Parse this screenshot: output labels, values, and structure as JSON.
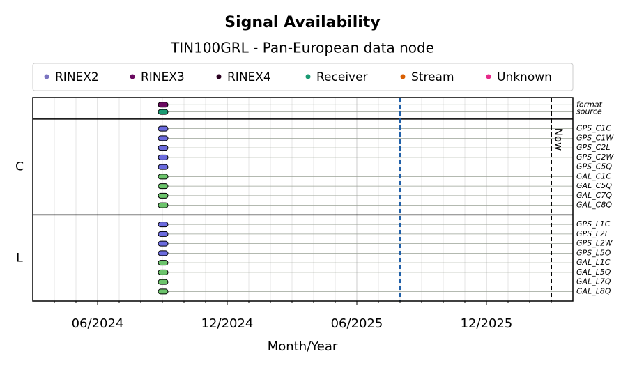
{
  "chart_data": {
    "type": "timeline",
    "title": "Signal Availability",
    "subtitle": "TIN100GRL - Pan-European data node",
    "xlabel": "Month/Year",
    "legend": [
      {
        "name": "RINEX2",
        "color": "#7b74c0"
      },
      {
        "name": "RINEX3",
        "color": "#6a0a60"
      },
      {
        "name": "RINEX4",
        "color": "#2a0020"
      },
      {
        "name": "Receiver",
        "color": "#1a9a72"
      },
      {
        "name": "Stream",
        "color": "#d95f02"
      },
      {
        "name": "Unknown",
        "color": "#e7298a"
      }
    ],
    "xlim": [
      "2024-03",
      "2026-04"
    ],
    "xticks": [
      {
        "value": "2024-06",
        "label": "06/2024"
      },
      {
        "value": "2024-12",
        "label": "12/2024"
      },
      {
        "value": "2025-06",
        "label": "06/2025"
      },
      {
        "value": "2025-12",
        "label": "12/2025"
      }
    ],
    "grid": true,
    "groups": [
      {
        "rows": [
          {
            "label": "format",
            "start": "2024-09",
            "color": "#6a0a60"
          },
          {
            "label": "source",
            "start": "2024-09",
            "color": "#1a9a72"
          }
        ]
      },
      {
        "name": "C",
        "rows": [
          {
            "label": "GPS_C1C",
            "start": "2024-09",
            "color": "#6b6bdd"
          },
          {
            "label": "GPS_C1W",
            "start": "2024-09",
            "color": "#6b6bdd"
          },
          {
            "label": "GPS_C2L",
            "start": "2024-09",
            "color": "#6b6bdd"
          },
          {
            "label": "GPS_C2W",
            "start": "2024-09",
            "color": "#6b6bdd"
          },
          {
            "label": "GPS_C5Q",
            "start": "2024-09",
            "color": "#6b6bdd"
          },
          {
            "label": "GAL_C1C",
            "start": "2024-09",
            "color": "#6cc46c"
          },
          {
            "label": "GAL_C5Q",
            "start": "2024-09",
            "color": "#6cc46c"
          },
          {
            "label": "GAL_C7Q",
            "start": "2024-09",
            "color": "#6cc46c"
          },
          {
            "label": "GAL_C8Q",
            "start": "2024-09",
            "color": "#6cc46c"
          }
        ]
      },
      {
        "name": "L",
        "rows": [
          {
            "label": "GPS_L1C",
            "start": "2024-09",
            "color": "#6b6bdd"
          },
          {
            "label": "GPS_L2L",
            "start": "2024-09",
            "color": "#6b6bdd"
          },
          {
            "label": "GPS_L2W",
            "start": "2024-09",
            "color": "#6b6bdd"
          },
          {
            "label": "GPS_L5Q",
            "start": "2024-09",
            "color": "#6b6bdd"
          },
          {
            "label": "GAL_L1C",
            "start": "2024-09",
            "color": "#6cc46c"
          },
          {
            "label": "GAL_L5Q",
            "start": "2024-09",
            "color": "#6cc46c"
          },
          {
            "label": "GAL_L7Q",
            "start": "2024-09",
            "color": "#6cc46c"
          },
          {
            "label": "GAL_L8Q",
            "start": "2024-09",
            "color": "#6cc46c"
          }
        ]
      }
    ],
    "markers": [
      {
        "x": "2025-08",
        "color": "#1f5fa8"
      },
      {
        "x": "2026-03",
        "color": "#000000",
        "label": "Now"
      }
    ]
  }
}
